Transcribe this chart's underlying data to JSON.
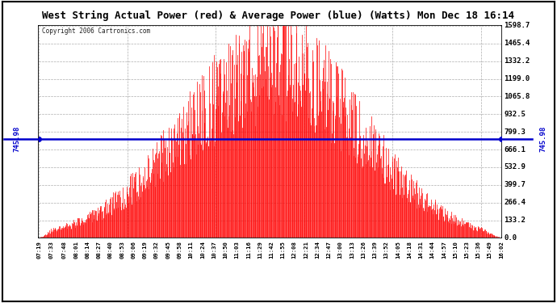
{
  "title": "West String Actual Power (red) & Average Power (blue) (Watts) Mon Dec 18 16:14",
  "copyright": "Copyright 2006 Cartronics.com",
  "avg_power": 745.98,
  "ymax": 1598.7,
  "ymin": 0.0,
  "yticks": [
    0.0,
    133.2,
    266.4,
    399.7,
    532.9,
    666.1,
    799.3,
    932.5,
    1065.8,
    1199.0,
    1332.2,
    1465.4,
    1598.7
  ],
  "ytick_labels": [
    "0.0",
    "133.2",
    "266.4",
    "399.7",
    "532.9",
    "666.1",
    "799.3",
    "932.5",
    "1065.8",
    "1199.0",
    "1332.2",
    "1465.4",
    "1598.7"
  ],
  "bg_color": "#ffffff",
  "plot_bg_color": "#ffffff",
  "grid_color": "#999999",
  "fill_color": "#ff0000",
  "line_color": "#0000cc",
  "avg_label_color": "#0000cc",
  "x_times": [
    "07:19",
    "07:33",
    "07:48",
    "08:01",
    "08:14",
    "08:27",
    "08:40",
    "08:53",
    "09:06",
    "09:19",
    "09:32",
    "09:45",
    "09:58",
    "10:11",
    "10:24",
    "10:37",
    "10:50",
    "11:03",
    "11:16",
    "11:29",
    "11:42",
    "11:55",
    "12:08",
    "12:21",
    "12:34",
    "12:47",
    "13:00",
    "13:13",
    "13:26",
    "13:39",
    "13:52",
    "14:05",
    "14:18",
    "14:31",
    "14:44",
    "14:57",
    "15:10",
    "15:23",
    "15:36",
    "15:49",
    "16:02"
  ]
}
